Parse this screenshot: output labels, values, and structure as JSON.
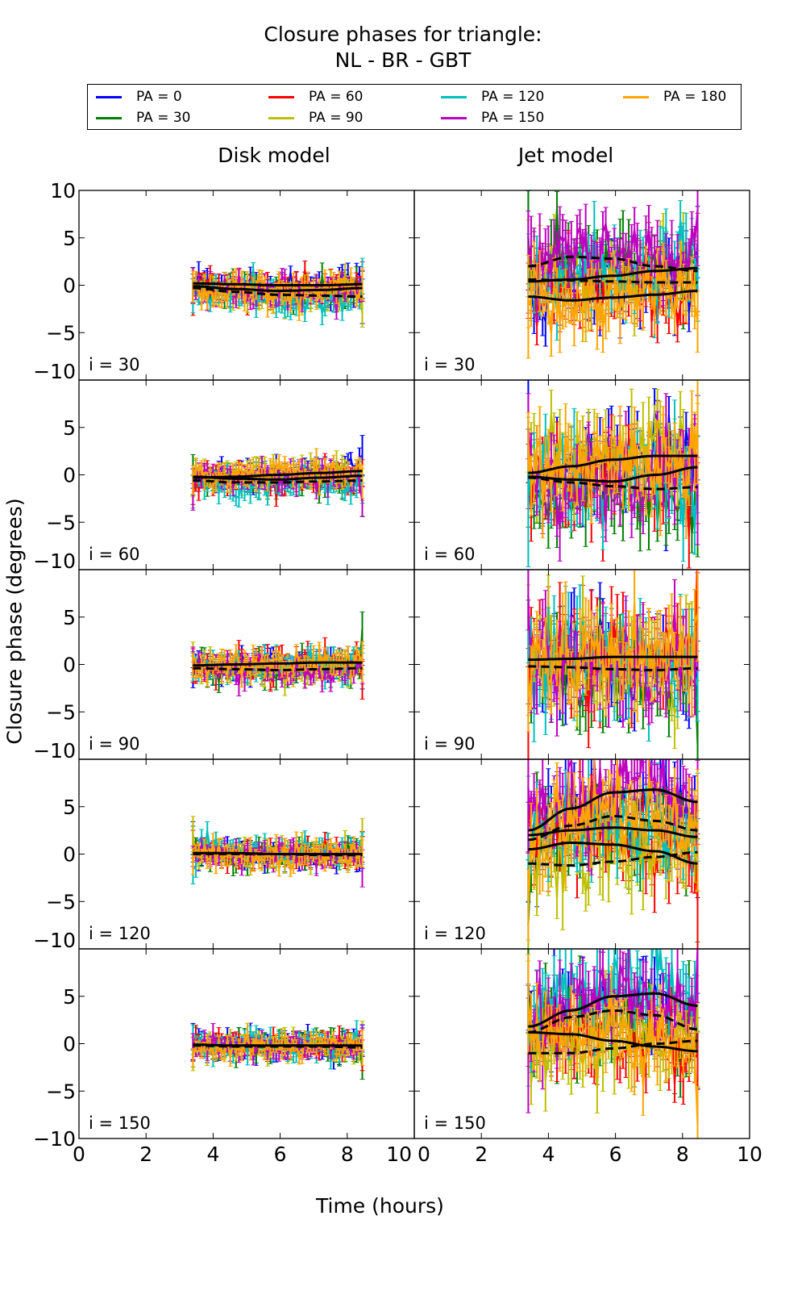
{
  "chart_data": {
    "type": "line",
    "title": "Closure phases for triangle:",
    "subtitle": "NL - BR - GBT",
    "xlabel": "Time (hours)",
    "ylabel": "Closure phase (degrees)",
    "xlim": [
      0,
      10
    ],
    "ylim": [
      -10,
      10
    ],
    "xticks": [
      "0",
      "2",
      "4",
      "6",
      "8",
      "10"
    ],
    "yticks": [
      "10",
      "5",
      "0",
      "−5",
      "−10"
    ],
    "grid": false,
    "legend_placement": "top",
    "legend": [
      {
        "label": "PA = 0",
        "color": "#0000ff"
      },
      {
        "label": "PA = 30",
        "color": "#008000"
      },
      {
        "label": "PA = 60",
        "color": "#ff0000"
      },
      {
        "label": "PA = 90",
        "color": "#bfbf00"
      },
      {
        "label": "PA = 120",
        "color": "#00bfbf"
      },
      {
        "label": "PA = 150",
        "color": "#bf00bf"
      },
      {
        "label": "PA = 180",
        "color": "#ffa500"
      }
    ],
    "columns": [
      "Disk model",
      "Jet model"
    ],
    "time_range": [
      3.4,
      8.45
    ],
    "panels": [
      {
        "column": "Disk model",
        "label": "i = 30",
        "noise": 1.2,
        "fits": [
          [
            -0.1,
            -0.4,
            -0.6,
            -0.5,
            -0.3
          ],
          [
            -0.3,
            -0.7,
            -1.0,
            -1.1,
            -1.2
          ],
          [
            0.2,
            0.1,
            0.0,
            0.0,
            0.1
          ]
        ],
        "offsets": [
          1.2,
          0.6,
          -0.6,
          -1.2,
          -0.5,
          -1.3,
          0.0
        ]
      },
      {
        "column": "Jet model",
        "label": "i = 30",
        "noise": 3.0,
        "fits": [
          [
            0.4,
            0.6,
            1.0,
            1.5,
            1.8
          ],
          [
            2.0,
            3.0,
            2.8,
            2.0,
            1.5
          ],
          [
            -1.2,
            -1.6,
            -1.3,
            -1.0,
            -0.6
          ],
          [
            0.6,
            0.5,
            0.4,
            0.3,
            0.3
          ]
        ],
        "offsets": [
          -2.5,
          -1.5,
          1.0,
          2.0,
          0.8,
          0.3,
          0.2
        ]
      },
      {
        "column": "Disk model",
        "label": "i = 60",
        "noise": 1.1,
        "fits": [
          [
            -0.3,
            -0.2,
            0.0,
            0.2,
            0.4
          ],
          [
            -0.6,
            -0.8,
            -0.8,
            -0.7,
            -0.6
          ],
          [
            -0.2,
            -0.4,
            -0.5,
            -0.3,
            -0.1
          ]
        ],
        "offsets": [
          0.5,
          0.2,
          -0.3,
          0.3,
          -0.4,
          0.4,
          0.0
        ]
      },
      {
        "column": "Jet model",
        "label": "i = 60",
        "noise": 3.3,
        "fits": [
          [
            0.2,
            0.9,
            1.6,
            2.0,
            2.0
          ],
          [
            -0.3,
            -0.8,
            -1.2,
            -1.5,
            -1.3
          ],
          [
            -0.2,
            -0.5,
            -0.7,
            0.0,
            0.8
          ]
        ],
        "offsets": [
          -1.5,
          -2.0,
          0.5,
          1.5,
          0.5,
          0.0,
          0.0
        ]
      },
      {
        "column": "Disk model",
        "label": "i = 90",
        "noise": 1.1,
        "fits": [
          [
            -0.1,
            0.0,
            0.1,
            0.2,
            0.2
          ],
          [
            -0.4,
            -0.5,
            -0.6,
            -0.5,
            -0.4
          ]
        ],
        "offsets": [
          0.2,
          0.3,
          0.0,
          0.2,
          -0.5,
          -0.4,
          0.0
        ]
      },
      {
        "column": "Jet model",
        "label": "i = 90",
        "noise": 3.8,
        "fits": [
          [
            0.5,
            0.6,
            0.8,
            0.8,
            0.8
          ],
          [
            -0.2,
            -0.3,
            -0.5,
            -0.6,
            -0.4
          ]
        ],
        "offsets": [
          -1.0,
          -0.5,
          0.5,
          1.5,
          0.5,
          0.5,
          0.0
        ]
      },
      {
        "column": "Disk model",
        "label": "i = 120",
        "noise": 1.0,
        "fits": [
          [
            0.1,
            0.1,
            0.0,
            0.0,
            0.0
          ],
          [
            0.0,
            0.0,
            0.0,
            -0.1,
            -0.1
          ]
        ],
        "offsets": [
          -0.3,
          0.4,
          0.0,
          0.2,
          0.2,
          -0.2,
          0.0
        ]
      },
      {
        "column": "Jet model",
        "label": "i = 120",
        "noise": 3.5,
        "fits": [
          [
            2.5,
            4.8,
            6.5,
            6.8,
            5.5
          ],
          [
            1.5,
            3.0,
            4.0,
            3.5,
            2.5
          ],
          [
            0.5,
            1.2,
            1.0,
            0.3,
            -1.0
          ],
          [
            -1.0,
            -1.2,
            -0.8,
            -0.3,
            0.2
          ],
          [
            2.0,
            2.5,
            2.8,
            2.5,
            1.8
          ]
        ],
        "offsets": [
          -3.0,
          -1.0,
          3.0,
          3.0,
          2.0,
          2.0,
          1.0
        ]
      },
      {
        "column": "Disk model",
        "label": "i = 150",
        "noise": 1.0,
        "fits": [
          [
            -0.1,
            -0.2,
            -0.2,
            -0.2,
            -0.2
          ],
          [
            -0.2,
            -0.3,
            -0.3,
            -0.3,
            -0.4
          ]
        ],
        "offsets": [
          0.0,
          0.3,
          0.0,
          0.2,
          0.1,
          -0.1,
          0.0
        ]
      },
      {
        "column": "Jet model",
        "label": "i = 150",
        "noise": 3.2,
        "fits": [
          [
            1.8,
            3.5,
            5.0,
            5.3,
            4.0
          ],
          [
            1.2,
            2.8,
            3.5,
            3.0,
            1.5
          ],
          [
            1.2,
            1.0,
            0.3,
            -0.3,
            -0.8
          ],
          [
            -1.0,
            -1.0,
            -0.5,
            0.0,
            0.3
          ]
        ],
        "offsets": [
          -2.5,
          -1.5,
          1.5,
          3.0,
          2.5,
          2.5,
          1.0
        ]
      }
    ]
  }
}
